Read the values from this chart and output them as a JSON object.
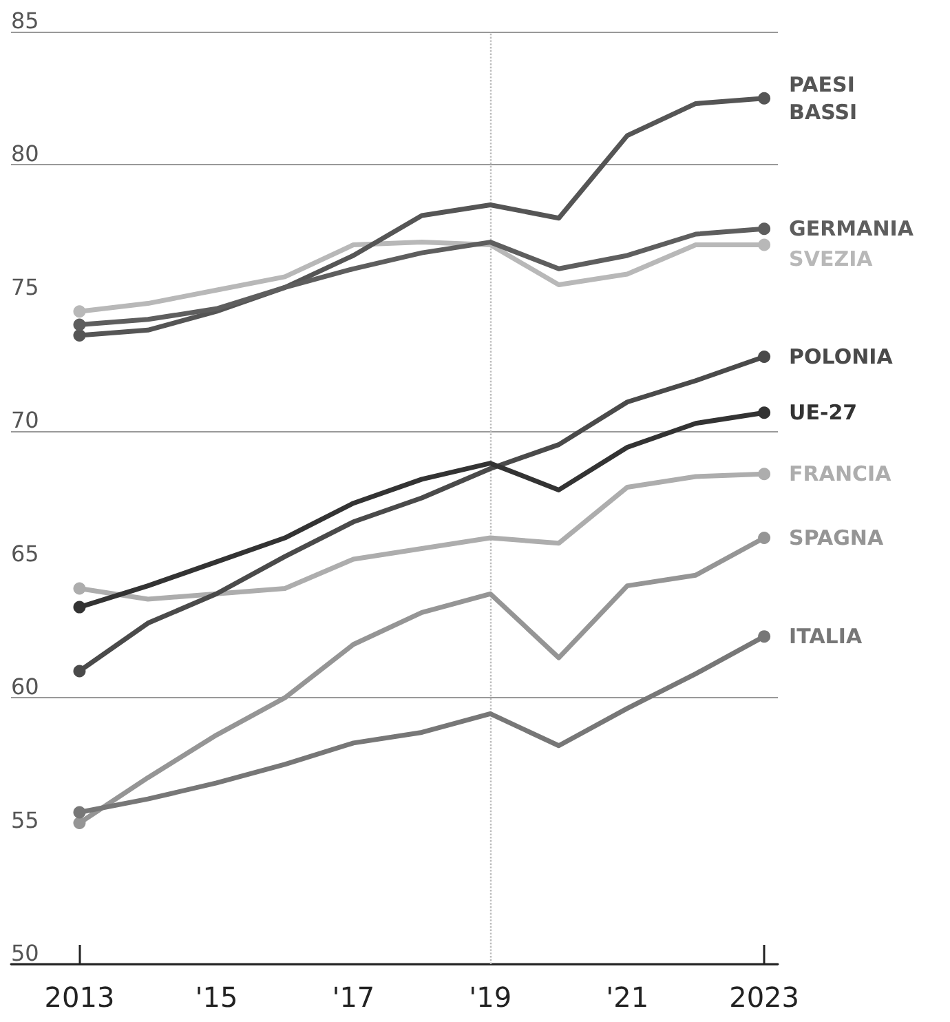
{
  "chart_data": {
    "type": "line",
    "x": [
      2013,
      2014,
      2015,
      2016,
      2017,
      2018,
      2019,
      2020,
      2021,
      2022,
      2023
    ],
    "xlim": [
      2012,
      2023.2
    ],
    "xticks": [
      {
        "value": 2013,
        "label": "2013"
      },
      {
        "value": 2015,
        "label": "'15"
      },
      {
        "value": 2017,
        "label": "'17"
      },
      {
        "value": 2019,
        "label": "'19"
      },
      {
        "value": 2021,
        "label": "'21"
      },
      {
        "value": 2023,
        "label": "2023"
      }
    ],
    "ylim": [
      50,
      85
    ],
    "yticks": [
      50,
      55,
      60,
      65,
      70,
      75,
      80,
      85
    ],
    "grid": "y",
    "line_style": "solid",
    "legend": false,
    "ref_lines": [
      {
        "axis": "x",
        "value": 2019,
        "label": null,
        "color": "#bbbbbb",
        "line_style": "dotted"
      }
    ],
    "series": [
      {
        "name": "PAESI BASSI",
        "color": "#555555",
        "values": [
          73.6,
          73.8,
          74.5,
          75.4,
          76.6,
          78.1,
          78.5,
          78.0,
          81.1,
          82.3,
          82.5
        ]
      },
      {
        "name": "GERMANIA",
        "color": "#5e5e5e",
        "values": [
          74.0,
          74.2,
          74.6,
          75.4,
          76.1,
          76.7,
          77.1,
          76.1,
          76.6,
          77.4,
          77.6
        ]
      },
      {
        "name": "SVEZIA",
        "color": "#b8b8b8",
        "values": [
          74.5,
          74.8,
          75.3,
          75.8,
          77.0,
          77.1,
          77.0,
          75.5,
          75.9,
          77.0,
          77.0
        ]
      },
      {
        "name": "POLONIA",
        "color": "#4a4a4a",
        "values": [
          61.0,
          62.8,
          63.9,
          65.3,
          66.6,
          67.5,
          68.6,
          69.5,
          71.1,
          71.9,
          72.8
        ]
      },
      {
        "name": "UE-27",
        "color": "#333333",
        "values": [
          63.4,
          64.2,
          65.1,
          66.0,
          67.3,
          68.2,
          68.8,
          67.8,
          69.4,
          70.3,
          70.7
        ]
      },
      {
        "name": "FRANCIA",
        "color": "#adadad",
        "values": [
          64.1,
          63.7,
          63.9,
          64.1,
          65.2,
          65.6,
          66.0,
          65.8,
          67.9,
          68.3,
          68.4
        ]
      },
      {
        "name": "SPAGNA",
        "color": "#959595",
        "values": [
          55.3,
          57.0,
          58.6,
          60.0,
          62.0,
          63.2,
          63.9,
          61.5,
          64.2,
          64.6,
          66.0
        ]
      },
      {
        "name": "ITALIA",
        "color": "#777777",
        "values": [
          55.7,
          56.2,
          56.8,
          57.5,
          58.3,
          58.7,
          59.4,
          58.2,
          59.6,
          60.9,
          62.3
        ]
      }
    ]
  }
}
